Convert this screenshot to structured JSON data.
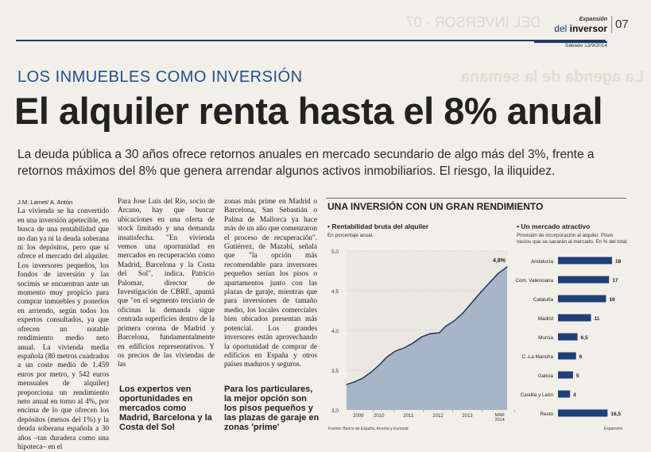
{
  "header": {
    "section_small": "Expansión",
    "section_prefix": "del",
    "section_name": "inversor",
    "page_number": "07",
    "date": "Sábado 13/9/2014"
  },
  "article": {
    "kicker": "LOS INMUEBLES COMO INVERSIÓN",
    "headline": "El alquiler renta hasta el 8% anual",
    "deck": "La deuda pública a 30 años ofrece retornos anuales en mercado secundario de algo más del 3%, frente a retornos máximos del 8% que genera arrendar algunos activos inmobiliarios. El riesgo, la iliquidez.",
    "byline": "J.M. Lamet/ A. Antón",
    "col1": "La vivienda se ha convertido en una inversión apetecible, en busca de una rentabilidad que no dan ya ni la deuda soberana ni los depósitos, pero que sí ofrece el mercado del alquiler. Los inversores pequeños, los fondos de inversión y las socimis se encuentran ante un momento muy propicio para comprar inmuebles y ponerlos en arriendo, según todos los expertos consultados, ya que ofrecen un notable rendimiento medio neto anual. La vivienda media española (80 metros cuadrados a un coste medio de 1.459 euros por metro, y 542 euros mensuales de alquiler) proporciona un rendimiento neto anual en torno al 4%, por encima de lo que ofrecen los depósitos (menos del 1%) y la deuda soberana española a 30 años –tan duradera como una hipoteca– en el",
    "col2": "Para Jose Luis del Río, socio de Arcano, hay que buscar ubicaciones en una oferta de stock limitado y una demanda insatisfecha. \"En vivienda vemos una oportunidad en mercados en recuperación como Madrid, Barcelona y la Costa del Sol\", indica. Patricio Palomar, director de Investigación de CBRE, apuntá que \"en el segmento terciario de oficinas la demanda sigue centrada superficies dentro de la primera corona de Madrid y Barcelona, fundamentalmente en edificios representativos. Y os precios de las viviendas de las",
    "col3": "zonas más prime en Madrid o Barcelona, San Sebastián o Palma de Mallorca ya hace más de un año que comenzaron el proceso de recuperación\". Gutiérrez, de Mazabi, señala que \"la opción más recomendable para inversores pequeños serían los pisos o apartamentos junto con las plazas de garaje, mientras que para inversiones de tamaño medio, los locales comerciales bien ubicados presentan más potencial. Los grandes inversores están aprovechando la oportunidad de comprar de edificios en España y otros países maduros y seguros.",
    "subhead1": "Los expertos ven oportunidades en mercados como Madrid, Barcelona y la Costa del Sol",
    "subhead2": "Para los particulares, la mejor opción son los pisos pequeños y las plazas de garaje en zonas 'prime'"
  },
  "infographic": {
    "title": "UNA INVERSIÓN CON UN GRAN RENDIMIENTO",
    "source": "Fuente: Banco de España, Arrenta y Eurostat",
    "credit": "Expansión",
    "line_chart_title": "Rentabilidad bruta del alquiler",
    "line_chart_subtitle": "En porcentaje anual.",
    "bar_chart_title": "Un mercado atractivo",
    "bar_chart_subtitle": "Provisión de incorporación al alquiler. Pisos vacíos que se sacarán al mercado. En % del total.",
    "area_color": "#a8b4c7",
    "bar_color": "#1f3f78"
  },
  "chart_data": [
    {
      "type": "area",
      "title": "Rentabilidad bruta del alquiler",
      "subtitle": "En porcentaje anual.",
      "ylim": [
        3.0,
        5.0
      ],
      "yticks": [
        "3,0",
        "3,5",
        "4,0",
        "4,5",
        "5,0"
      ],
      "xticks": [
        "2009",
        "2010",
        "2011",
        "2012",
        "2013",
        "MAR 2014"
      ],
      "x_range": [
        2008.75,
        2014.2
      ],
      "annotation": "4,8%",
      "x": [
        2008.75,
        2009.0,
        2009.3,
        2009.6,
        2009.9,
        2010.1,
        2010.4,
        2010.7,
        2011.0,
        2011.3,
        2011.6,
        2011.9,
        2012.1,
        2012.4,
        2012.7,
        2013.0,
        2013.3,
        2013.6,
        2013.9,
        2014.2
      ],
      "values": [
        3.32,
        3.35,
        3.4,
        3.48,
        3.58,
        3.66,
        3.74,
        3.78,
        3.84,
        3.92,
        3.96,
        3.97,
        4.05,
        4.12,
        4.22,
        4.35,
        4.48,
        4.6,
        4.72,
        4.8
      ]
    },
    {
      "type": "bar",
      "orientation": "horizontal",
      "title": "Un mercado atractivo",
      "subtitle": "Provisión de incorporación al alquiler. Pisos vacíos que se sacarán al mercado. En % del total.",
      "categories": [
        "Andalucía",
        "Com. Valenciana",
        "Cataluña",
        "Madrid",
        "Murcia",
        "C.-La Mancha",
        "Galicia",
        "Castilla y León",
        "Resto"
      ],
      "values": [
        18,
        17,
        16,
        11,
        6.5,
        6,
        5,
        4,
        16.5
      ],
      "value_labels": [
        "18",
        "17",
        "16",
        "11",
        "6,5",
        "6",
        "5",
        "4",
        "16,5"
      ],
      "xlim": [
        0,
        18
      ]
    }
  ]
}
